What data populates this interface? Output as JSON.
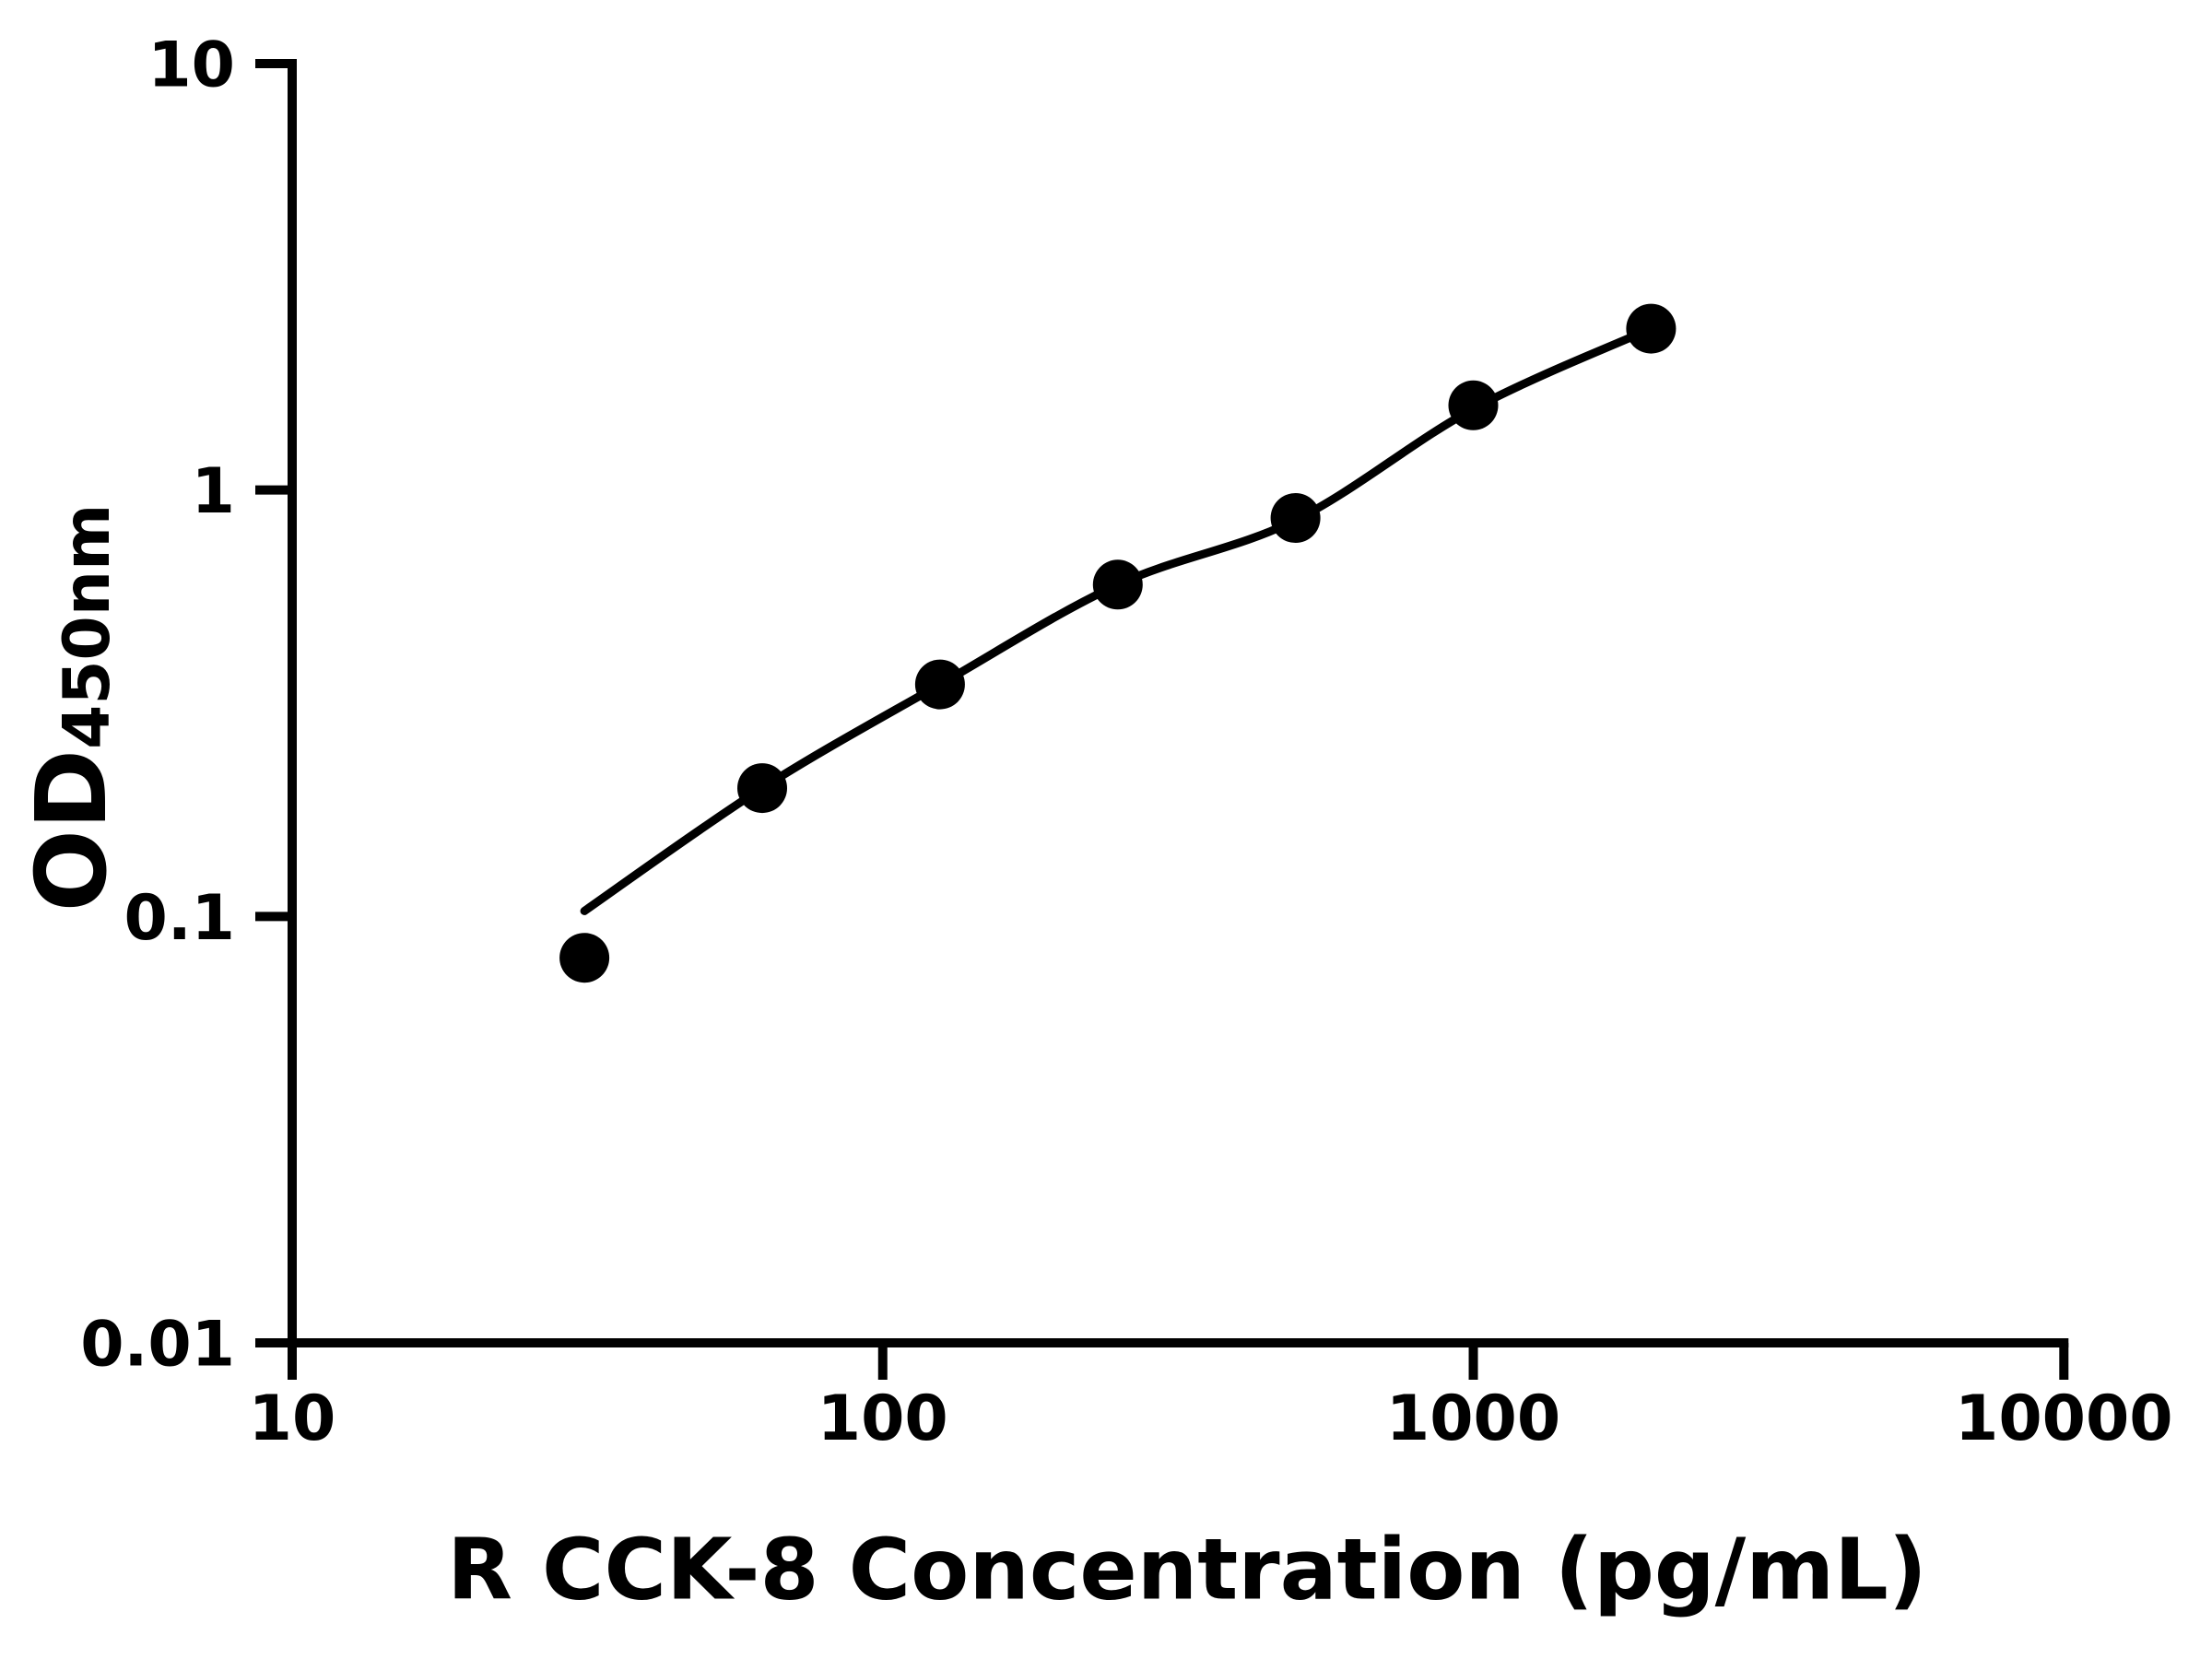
{
  "figure": {
    "background": "#ffffff",
    "ink": "#000000",
    "marker": "filled-circle",
    "marker_color": "#000000",
    "line_color": "#000000"
  },
  "x_axis": {
    "title": "R CCK-8 Concentration (pg/mL)",
    "scale": "log",
    "range": [
      10,
      10000
    ],
    "ticks": [
      10,
      100,
      1000,
      10000
    ],
    "tick_labels": [
      "10",
      "100",
      "1000",
      "10000"
    ]
  },
  "y_axis": {
    "title_main": "OD",
    "title_sub": "450nm",
    "scale": "log",
    "range": [
      0.01,
      10
    ],
    "ticks": [
      10,
      1,
      0.1,
      0.01
    ],
    "tick_labels": [
      "10",
      "1",
      "0.1",
      "0.01"
    ]
  },
  "chart_data": {
    "type": "scatter",
    "title": "",
    "xlabel": "R CCK-8 Concentration (pg/mL)",
    "ylabel": "OD450nm",
    "x_scale": "log",
    "y_scale": "log",
    "xlim": [
      10,
      10000
    ],
    "ylim": [
      0.01,
      10
    ],
    "grid": false,
    "legend": null,
    "x": [
      31.25,
      62.5,
      125,
      250,
      500,
      1000,
      2000
    ],
    "y": [
      0.08,
      0.2,
      0.35,
      0.6,
      0.86,
      1.58,
      2.39
    ],
    "fit_curve": [
      [
        31.25,
        0.103
      ],
      [
        62.5,
        0.2
      ],
      [
        125,
        0.35
      ],
      [
        250,
        0.6
      ],
      [
        500,
        0.85
      ],
      [
        1000,
        1.55
      ],
      [
        2000,
        2.39
      ]
    ]
  }
}
